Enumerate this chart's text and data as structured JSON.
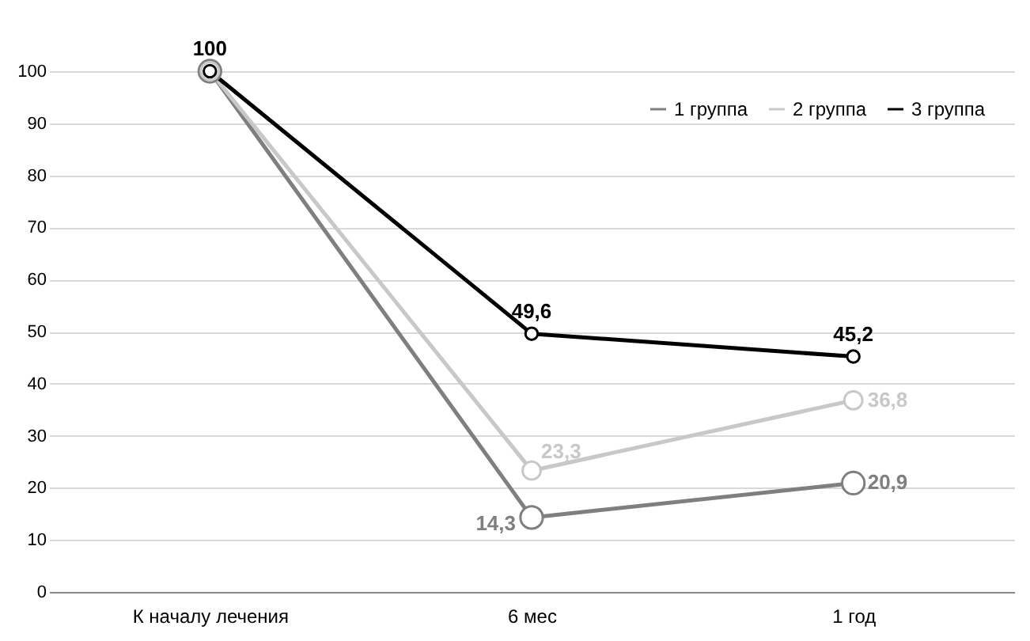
{
  "chart_data": {
    "type": "line",
    "categories": [
      "К началу лечения",
      "6 мес",
      "1 год"
    ],
    "series": [
      {
        "name": "1 группа",
        "color": "#7f7f7f",
        "values": [
          100,
          14.3,
          20.9
        ],
        "value_labels": [
          null,
          "14,3",
          "20,9"
        ]
      },
      {
        "name": "2 группа",
        "color": "#c8c8c8",
        "values": [
          100,
          23.3,
          36.8
        ],
        "value_labels": [
          null,
          "23,3",
          "36,8"
        ]
      },
      {
        "name": "3 группа",
        "color": "#000000",
        "values": [
          100,
          49.6,
          45.2
        ],
        "value_labels": [
          "100",
          "49,6",
          "45,2"
        ]
      }
    ],
    "ylim": [
      0,
      100
    ],
    "yticks": [
      0,
      10,
      20,
      30,
      40,
      50,
      60,
      70,
      80,
      90,
      100
    ],
    "grid": "y",
    "legend": "top right",
    "marker": "circle",
    "line_style": "solid"
  }
}
